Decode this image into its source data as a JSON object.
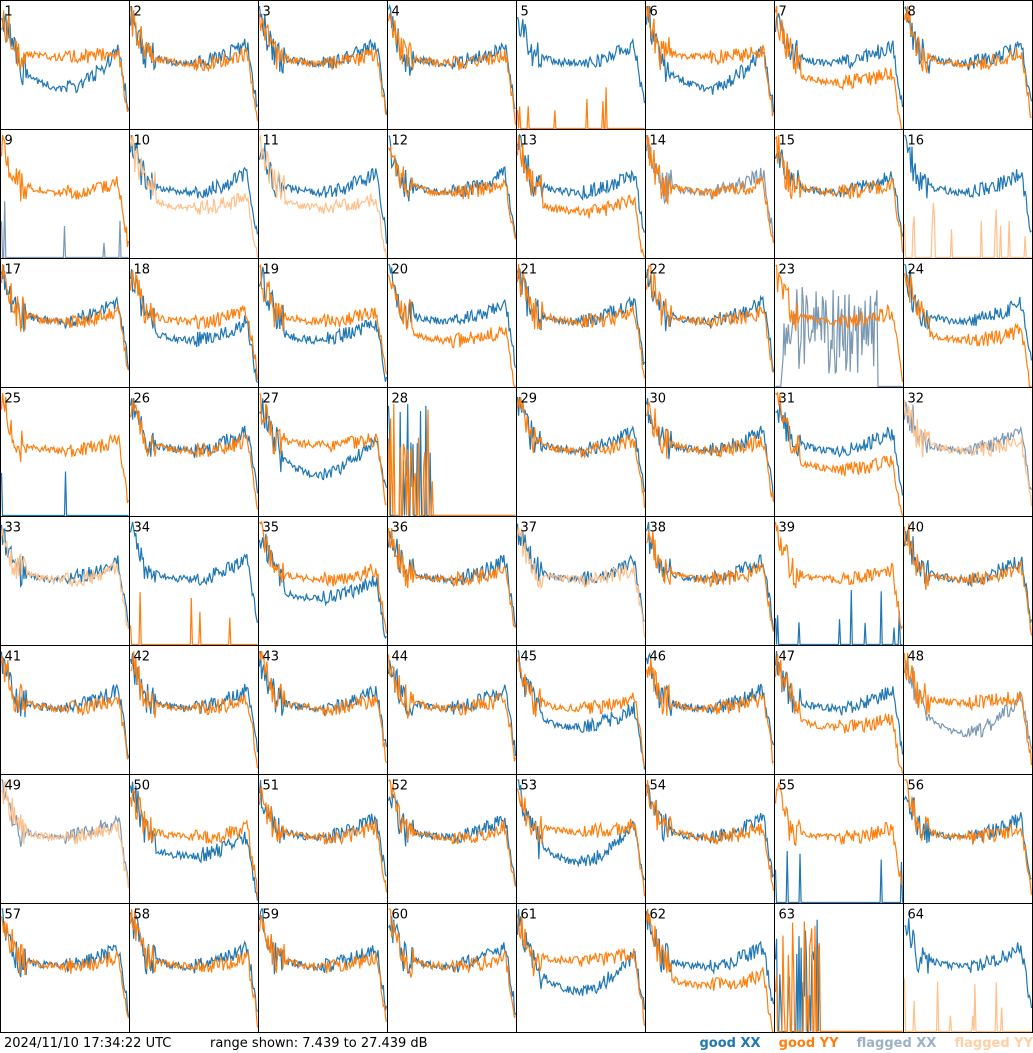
{
  "chart_data": {
    "type": "line",
    "grid_rows": 8,
    "grid_cols": 8,
    "x_axis": "frequency channel (unlabeled)",
    "range_shown_db": [
      7.439,
      27.439
    ],
    "tiles": [
      {
        "id": "1",
        "pattern": "divergent",
        "xx": "good",
        "yy": "good"
      },
      {
        "id": "2",
        "pattern": "typical",
        "xx": "good",
        "yy": "good"
      },
      {
        "id": "3",
        "pattern": "typical",
        "xx": "good",
        "yy": "good"
      },
      {
        "id": "4",
        "pattern": "typical",
        "xx": "good",
        "yy": "good"
      },
      {
        "id": "5",
        "pattern": "xx_only",
        "xx": "good",
        "yy": "good"
      },
      {
        "id": "6",
        "pattern": "divergent",
        "xx": "good",
        "yy": "good"
      },
      {
        "id": "7",
        "pattern": "yy_low",
        "xx": "good",
        "yy": "good"
      },
      {
        "id": "8",
        "pattern": "typical",
        "xx": "good",
        "yy": "good"
      },
      {
        "id": "9",
        "pattern": "yy_only",
        "xx": "flagged",
        "yy": "good"
      },
      {
        "id": "10",
        "pattern": "xx_high",
        "xx": "good",
        "yy": "flagged"
      },
      {
        "id": "11",
        "pattern": "xx_high",
        "xx": "good",
        "yy": "flagged"
      },
      {
        "id": "12",
        "pattern": "typical",
        "xx": "good",
        "yy": "good"
      },
      {
        "id": "13",
        "pattern": "yy_low",
        "xx": "good",
        "yy": "good"
      },
      {
        "id": "14",
        "pattern": "typical",
        "xx": "flagged",
        "yy": "good"
      },
      {
        "id": "15",
        "pattern": "typical",
        "xx": "good",
        "yy": "good"
      },
      {
        "id": "16",
        "pattern": "xx_only",
        "xx": "good",
        "yy": "flagged"
      },
      {
        "id": "17",
        "pattern": "typical",
        "xx": "good",
        "yy": "good"
      },
      {
        "id": "18",
        "pattern": "xx_low",
        "xx": "good",
        "yy": "good"
      },
      {
        "id": "19",
        "pattern": "xx_low",
        "xx": "good",
        "yy": "good"
      },
      {
        "id": "20",
        "pattern": "yy_low",
        "xx": "good",
        "yy": "good"
      },
      {
        "id": "21",
        "pattern": "typical",
        "xx": "good",
        "yy": "good"
      },
      {
        "id": "22",
        "pattern": "typical",
        "xx": "good",
        "yy": "good"
      },
      {
        "id": "23",
        "pattern": "noisy",
        "xx": "flagged",
        "yy": "good"
      },
      {
        "id": "24",
        "pattern": "yy_low",
        "xx": "good",
        "yy": "good"
      },
      {
        "id": "25",
        "pattern": "yy_only",
        "xx": "good",
        "yy": "good"
      },
      {
        "id": "26",
        "pattern": "typical",
        "xx": "good",
        "yy": "good"
      },
      {
        "id": "27",
        "pattern": "divergent",
        "xx": "good",
        "yy": "good"
      },
      {
        "id": "28",
        "pattern": "spikes",
        "xx": "good",
        "yy": "good"
      },
      {
        "id": "29",
        "pattern": "typical",
        "xx": "good",
        "yy": "good"
      },
      {
        "id": "30",
        "pattern": "typical",
        "xx": "good",
        "yy": "good"
      },
      {
        "id": "31",
        "pattern": "yy_low",
        "xx": "good",
        "yy": "good"
      },
      {
        "id": "32",
        "pattern": "flagged_yy",
        "xx": "flagged",
        "yy": "flagged"
      },
      {
        "id": "33",
        "pattern": "typical",
        "xx": "good",
        "yy": "flagged"
      },
      {
        "id": "34",
        "pattern": "xx_only",
        "xx": "good",
        "yy": "good"
      },
      {
        "id": "35",
        "pattern": "xx_low",
        "xx": "good",
        "yy": "good"
      },
      {
        "id": "36",
        "pattern": "typical",
        "xx": "good",
        "yy": "good"
      },
      {
        "id": "37",
        "pattern": "typical",
        "xx": "good",
        "yy": "flagged"
      },
      {
        "id": "38",
        "pattern": "typical",
        "xx": "good",
        "yy": "good"
      },
      {
        "id": "39",
        "pattern": "yy_only",
        "xx": "good",
        "yy": "good"
      },
      {
        "id": "40",
        "pattern": "typical",
        "xx": "good",
        "yy": "good"
      },
      {
        "id": "41",
        "pattern": "typical",
        "xx": "good",
        "yy": "good"
      },
      {
        "id": "42",
        "pattern": "typical",
        "xx": "good",
        "yy": "good"
      },
      {
        "id": "43",
        "pattern": "typical",
        "xx": "good",
        "yy": "good"
      },
      {
        "id": "44",
        "pattern": "typical",
        "xx": "good",
        "yy": "good"
      },
      {
        "id": "45",
        "pattern": "xx_low",
        "xx": "good",
        "yy": "good"
      },
      {
        "id": "46",
        "pattern": "typical",
        "xx": "good",
        "yy": "good"
      },
      {
        "id": "47",
        "pattern": "yy_low",
        "xx": "good",
        "yy": "good"
      },
      {
        "id": "48",
        "pattern": "divergent",
        "xx": "flagged",
        "yy": "good"
      },
      {
        "id": "49",
        "pattern": "typical",
        "xx": "flagged",
        "yy": "flagged"
      },
      {
        "id": "50",
        "pattern": "xx_low",
        "xx": "good",
        "yy": "good"
      },
      {
        "id": "51",
        "pattern": "typical",
        "xx": "good",
        "yy": "good"
      },
      {
        "id": "52",
        "pattern": "typical",
        "xx": "good",
        "yy": "good"
      },
      {
        "id": "53",
        "pattern": "divergent",
        "xx": "good",
        "yy": "good"
      },
      {
        "id": "54",
        "pattern": "typical",
        "xx": "good",
        "yy": "good"
      },
      {
        "id": "55",
        "pattern": "yy_only",
        "xx": "good",
        "yy": "good"
      },
      {
        "id": "56",
        "pattern": "typical",
        "xx": "good",
        "yy": "good"
      },
      {
        "id": "57",
        "pattern": "typical",
        "xx": "good",
        "yy": "good"
      },
      {
        "id": "58",
        "pattern": "typical",
        "xx": "good",
        "yy": "good"
      },
      {
        "id": "59",
        "pattern": "typical",
        "xx": "good",
        "yy": "good"
      },
      {
        "id": "60",
        "pattern": "typical",
        "xx": "good",
        "yy": "good"
      },
      {
        "id": "61",
        "pattern": "divergent",
        "xx": "good",
        "yy": "good"
      },
      {
        "id": "62",
        "pattern": "yy_low",
        "xx": "good",
        "yy": "good"
      },
      {
        "id": "63",
        "pattern": "spikes",
        "xx": "good",
        "yy": "good"
      },
      {
        "id": "64",
        "pattern": "xx_only",
        "xx": "good",
        "yy": "flagged"
      }
    ]
  },
  "footer": {
    "timestamp": "2024/11/10 17:34:22 UTC",
    "range_text": "range shown: 7.439 to 27.439 dB"
  },
  "legend": {
    "good_xx": {
      "label": "good XX",
      "color": "#1f77b4"
    },
    "good_yy": {
      "label": "good YY",
      "color": "#ff7f0e"
    },
    "flagged_xx": {
      "label": "flagged XX",
      "color": "#7b98b2"
    },
    "flagged_yy": {
      "label": "flagged YY",
      "color": "#ffc08a"
    }
  }
}
